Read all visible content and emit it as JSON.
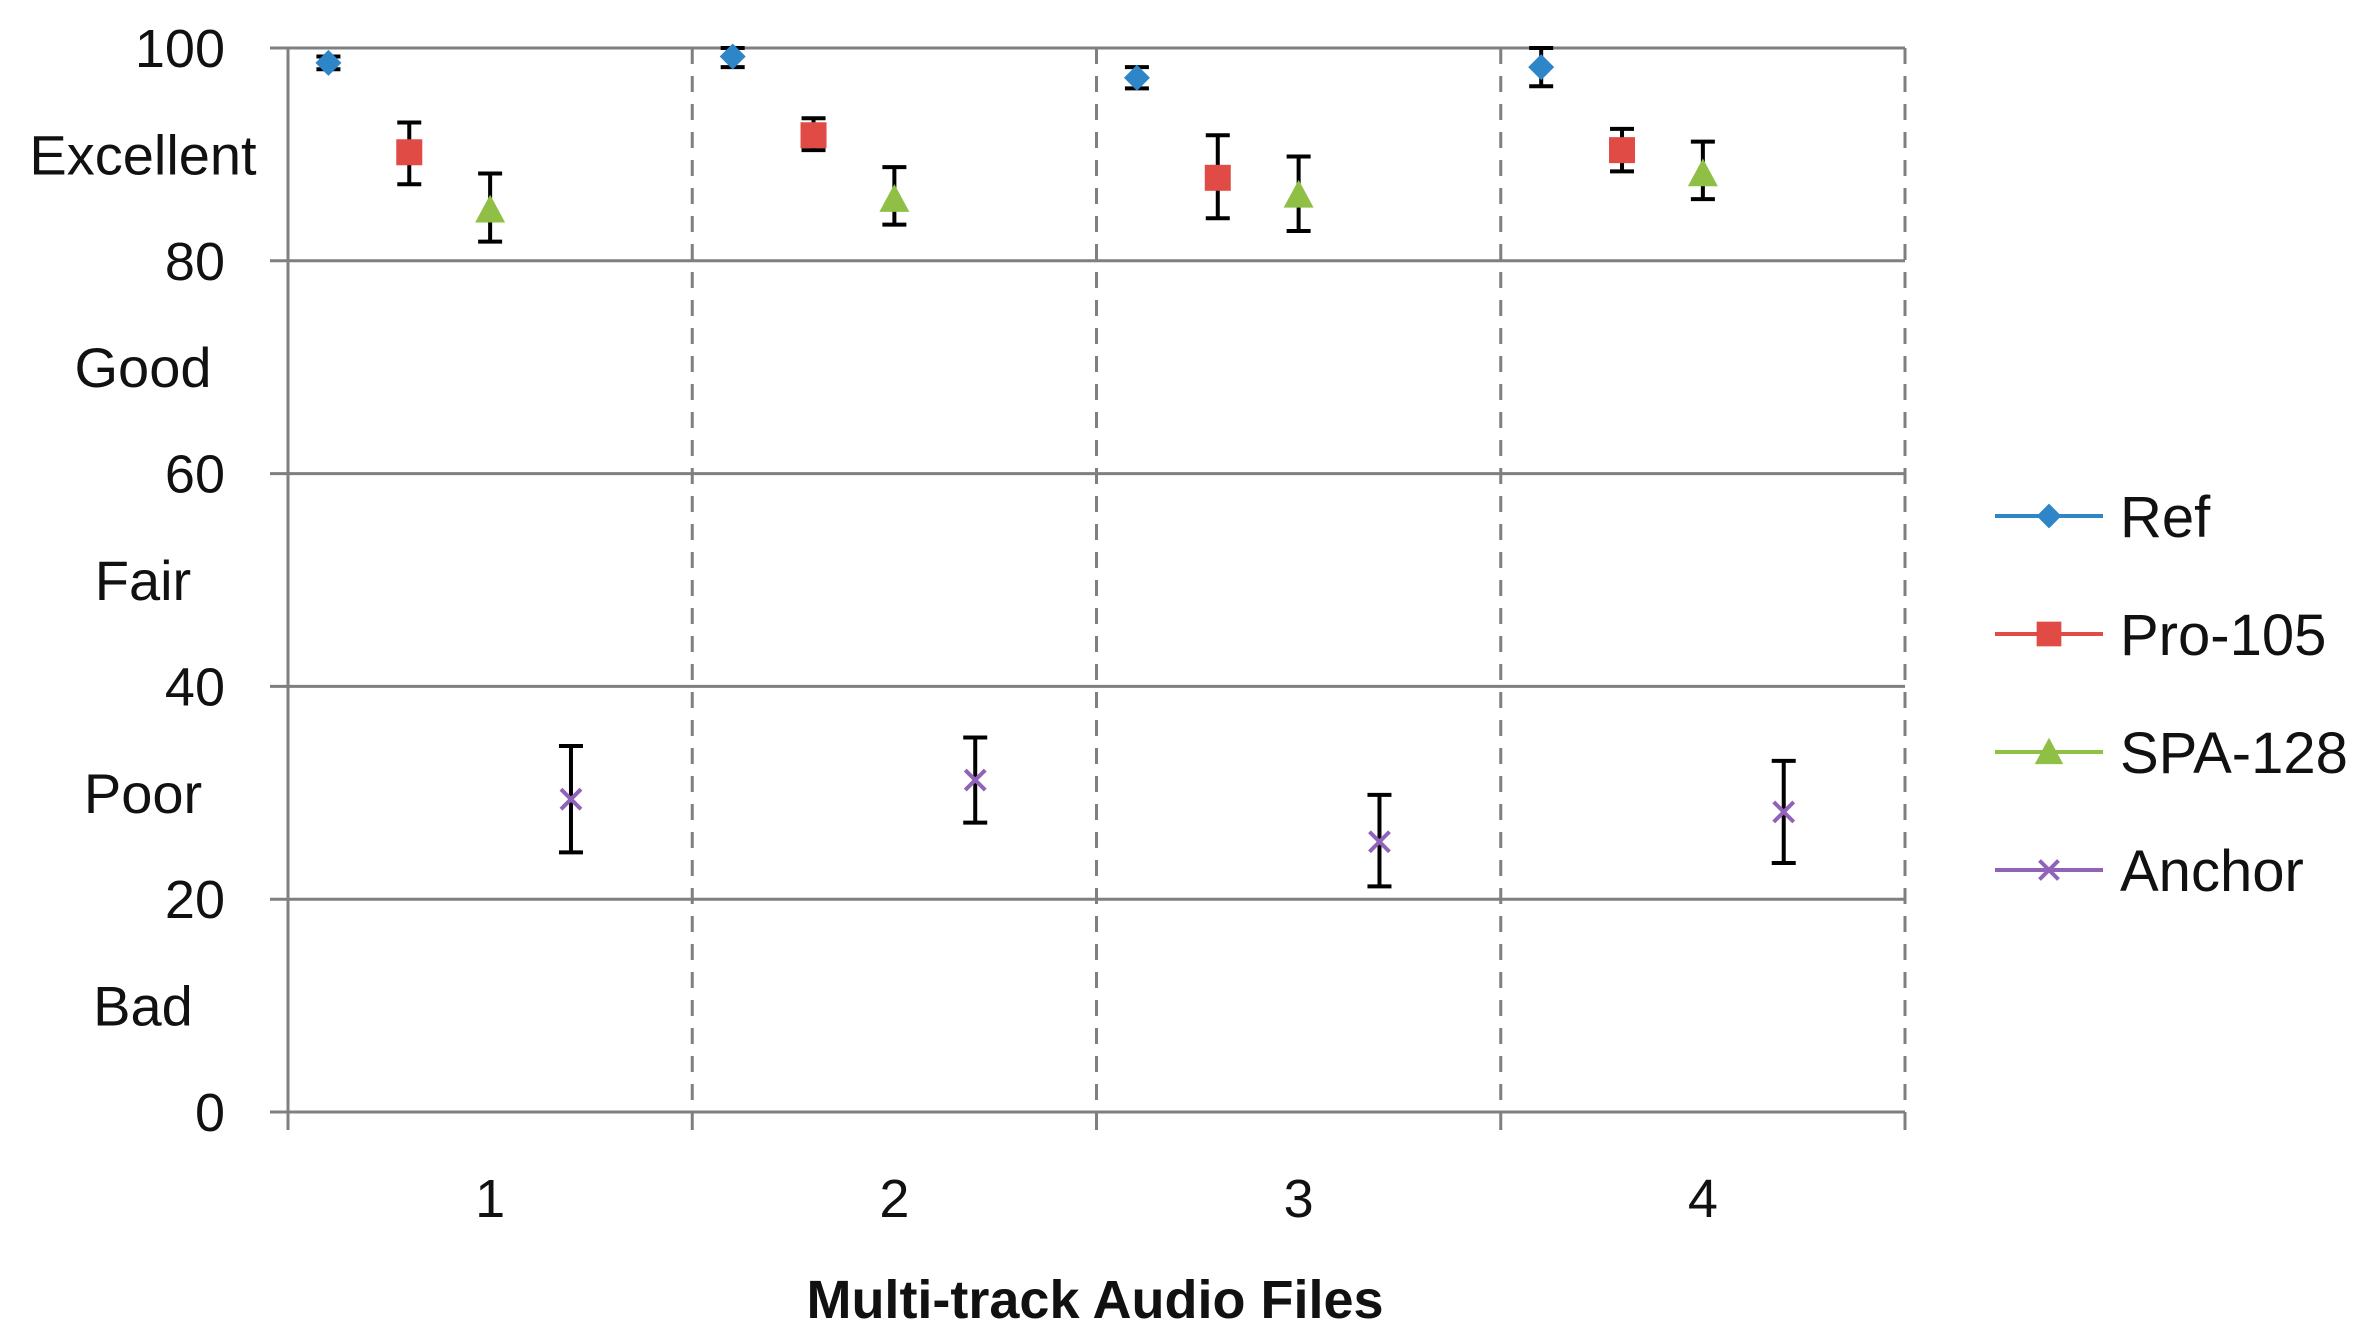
{
  "chart_data": {
    "type": "scatter",
    "title": "",
    "xlabel": "Multi-track Audio Files",
    "ylabel": "",
    "categories": [
      "1",
      "2",
      "3",
      "4"
    ],
    "ylim": [
      0,
      100
    ],
    "yticks": [
      "0",
      "20",
      "40",
      "60",
      "80",
      "100"
    ],
    "quality_bands": [
      {
        "label": "Bad",
        "range": [
          0,
          20
        ]
      },
      {
        "label": "Poor",
        "range": [
          20,
          40
        ]
      },
      {
        "label": "Fair",
        "range": [
          40,
          60
        ]
      },
      {
        "label": "Good",
        "range": [
          60,
          80
        ]
      },
      {
        "label": "Excellent",
        "range": [
          80,
          100
        ]
      }
    ],
    "grid": {
      "horizontal": true,
      "vertical_category_separators": "dashed"
    },
    "legend": {
      "position": "right"
    },
    "series": [
      {
        "name": "Ref",
        "marker": "diamond",
        "color": "#2e86c8",
        "values": [
          98.6,
          99.2,
          97.2,
          98.2
        ],
        "error": [
          [
            98.0,
            99.2
          ],
          [
            98.2,
            100.0
          ],
          [
            96.2,
            98.2
          ],
          [
            96.4,
            100.0
          ]
        ]
      },
      {
        "name": "Pro-105",
        "marker": "square",
        "color": "#e04b45",
        "values": [
          90.2,
          91.8,
          87.8,
          90.4
        ],
        "error": [
          [
            87.2,
            93.0
          ],
          [
            90.4,
            93.4
          ],
          [
            84.0,
            91.8
          ],
          [
            88.4,
            92.4
          ]
        ]
      },
      {
        "name": "SPA-128",
        "marker": "triangle",
        "color": "#8fc045",
        "values": [
          84.8,
          85.8,
          86.2,
          88.2
        ],
        "error": [
          [
            81.8,
            88.2
          ],
          [
            83.4,
            88.8
          ],
          [
            82.8,
            89.8
          ],
          [
            85.8,
            91.2
          ]
        ]
      },
      {
        "name": "Anchor",
        "marker": "x",
        "color": "#9163b8",
        "values": [
          29.4,
          31.2,
          25.4,
          28.2
        ],
        "error": [
          [
            24.4,
            34.4
          ],
          [
            27.2,
            35.2
          ],
          [
            21.2,
            29.8
          ],
          [
            23.4,
            33.0
          ]
        ]
      }
    ]
  }
}
